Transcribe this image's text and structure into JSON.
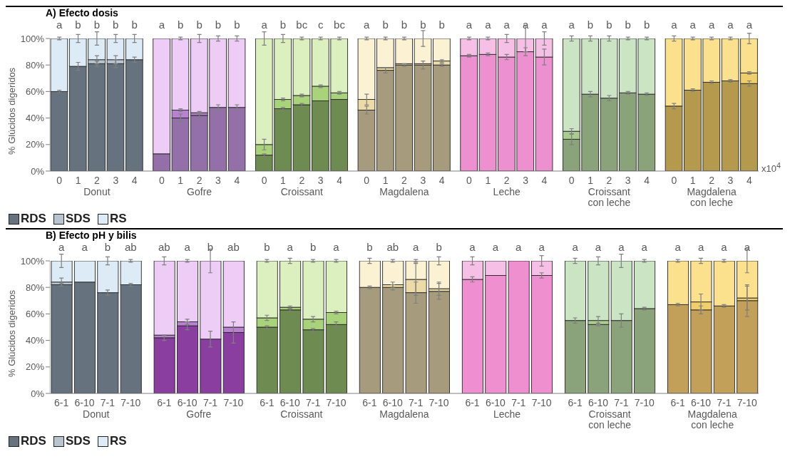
{
  "chart_data": [
    {
      "type": "bar",
      "stacked": true,
      "title": "A) Efecto dosis",
      "xlabel": "x10$^{4}$",
      "ylabel": "% Glúcidos digeridos",
      "legend": "bottom left",
      "categories": [
        "0",
        "1",
        "2",
        "3",
        "4",
        "0",
        "1",
        "2",
        "3",
        "4",
        "0",
        "1",
        "2",
        "3",
        "4",
        "0",
        "1",
        "2",
        "3",
        "4",
        "0",
        "1",
        "2",
        "3",
        "4",
        "0",
        "1",
        "2",
        "3",
        "4",
        "0",
        "1",
        "2",
        "3",
        "4"
      ],
      "ylim": [
        0,
        100
      ],
      "yticks": [
        {
          "value": 0,
          "label": "0%"
        },
        {
          "value": 20,
          "label": "20%"
        },
        {
          "value": 40,
          "label": "40%"
        },
        {
          "value": 60,
          "label": "60%"
        },
        {
          "value": 80,
          "label": "80%"
        },
        {
          "value": 100,
          "label": "100%"
        }
      ],
      "series": [
        {
          "name": "RDS",
          "values": [
            60,
            79,
            81,
            81,
            84,
            13,
            40,
            42,
            48,
            48,
            12,
            47,
            50,
            53,
            54,
            46,
            76,
            80,
            80,
            80,
            87,
            88,
            86,
            90,
            86,
            24,
            58,
            55,
            59,
            58,
            49,
            61,
            67,
            68,
            66
          ],
          "errors": [
            1,
            3,
            2,
            3,
            2,
            null,
            3,
            2,
            2,
            2,
            1,
            1,
            1,
            null,
            null,
            3,
            2,
            1,
            3,
            1,
            1,
            1,
            2,
            3,
            6,
            4,
            2,
            2,
            1,
            1,
            2,
            1,
            1,
            1,
            2
          ],
          "colors": [
            "#66737f",
            "#66737f",
            "#66737f",
            "#66737f",
            "#66737f",
            "#9370a8",
            "#9370a8",
            "#9370a8",
            "#9370a8",
            "#9370a8",
            "#6e8c52",
            "#6e8c52",
            "#6e8c52",
            "#6e8c52",
            "#6e8c52",
            "#a69c7d",
            "#a69c7d",
            "#a69c7d",
            "#a69c7d",
            "#a69c7d",
            "#ec90cf",
            "#ec90cf",
            "#ec90cf",
            "#ec90cf",
            "#ec90cf",
            "#8aa37a",
            "#8aa37a",
            "#8aa37a",
            "#8aa37a",
            "#8aa37a",
            "#b59a4e",
            "#b59a4e",
            "#b59a4e",
            "#b59a4e",
            "#b59a4e"
          ]
        },
        {
          "name": "SDS",
          "values": [
            0,
            0,
            3,
            3,
            0,
            0,
            6,
            2,
            0,
            0,
            8,
            7,
            7,
            11,
            5,
            8,
            2,
            1,
            1,
            3,
            0,
            0,
            0,
            0,
            0,
            6,
            0,
            0,
            0,
            0,
            0,
            0,
            0,
            0,
            8
          ],
          "errors": [
            null,
            null,
            3,
            3,
            null,
            null,
            1,
            1,
            null,
            null,
            4,
            1,
            1,
            1,
            1,
            4,
            null,
            null,
            null,
            1,
            null,
            null,
            null,
            null,
            null,
            2,
            null,
            null,
            null,
            null,
            null,
            null,
            null,
            null,
            1
          ],
          "colors": [
            null,
            null,
            "#b8c4d0",
            "#b8c4d0",
            null,
            null,
            "#b982d0",
            "#b982d0",
            null,
            null,
            "#a9d37a",
            "#a9d37a",
            "#a9d37a",
            "#a9d37a",
            "#a9d37a",
            "#ecdba6",
            "#ecdba6",
            "#ecdba6",
            "#ecdba6",
            "#ecdba6",
            null,
            null,
            null,
            null,
            null,
            "#a9cc8f",
            null,
            null,
            null,
            null,
            null,
            null,
            null,
            null,
            "#f0cf6a"
          ]
        },
        {
          "name": "RS",
          "values": [
            40,
            21,
            16,
            16,
            16,
            87,
            54,
            56,
            52,
            52,
            80,
            46,
            43,
            36,
            41,
            46,
            22,
            19,
            19,
            17,
            13,
            12,
            14,
            10,
            14,
            70,
            42,
            45,
            41,
            42,
            51,
            39,
            33,
            32,
            26
          ],
          "errors": [
            1,
            3,
            5,
            3,
            3,
            null,
            1,
            3,
            2,
            2,
            5,
            3,
            1,
            1,
            1,
            1,
            1,
            1,
            6,
            null,
            1,
            1,
            3,
            10,
            5,
            2,
            2,
            2,
            1,
            1,
            2,
            1,
            1,
            1,
            4
          ],
          "colors": [
            "#dcebf6",
            "#dcebf6",
            "#dcebf6",
            "#dcebf6",
            "#dcebf6",
            "#edcdf5",
            "#edcdf5",
            "#edcdf5",
            "#edcdf5",
            "#edcdf5",
            "#dcf0bf",
            "#dcf0bf",
            "#dcf0bf",
            "#dcf0bf",
            "#dcf0bf",
            "#fbf1d3",
            "#fbf1d3",
            "#fbf1d3",
            "#fbf1d3",
            "#fbf1d3",
            "#f6bfe6",
            "#f6bfe6",
            "#f6bfe6",
            "#f6bfe6",
            "#f6bfe6",
            "#cbe5c4",
            "#cbe5c4",
            "#cbe5c4",
            "#cbe5c4",
            "#cbe5c4",
            "#fbe08e",
            "#fbe08e",
            "#fbe08e",
            "#fbe08e",
            "#fbe08e"
          ]
        }
      ],
      "annotations": [
        "a",
        "b",
        "b",
        "b",
        "b",
        "a",
        "b",
        "b",
        "b",
        "b",
        "a",
        "b",
        "bc",
        "c",
        "bc",
        "a",
        "b",
        "b",
        "b",
        "b",
        "a",
        "a",
        "a",
        "a",
        "a",
        "a",
        "b",
        "b",
        "b",
        "b",
        "a",
        "a",
        "a",
        "a",
        "a",
        "Donut",
        "Gofre",
        "Croissant",
        "Magdalena",
        "Leche",
        "Croissant con leche",
        "Magdalena con leche"
      ]
    },
    {
      "type": "bar",
      "stacked": true,
      "title": "B) Efecto pH y bilis",
      "ylabel": "% Glúcidos digeridos",
      "legend": "bottom left",
      "categories": [
        "6-1",
        "6-10",
        "7-1",
        "7-10",
        "6-1",
        "6-10",
        "7-1",
        "7-10",
        "6-1",
        "6-10",
        "7-1",
        "7-10",
        "6-1",
        "6-10",
        "7-1",
        "7-10",
        "6-1",
        "6-10",
        "7-1",
        "7-10",
        "6-1",
        "6-10",
        "7-1",
        "7-10",
        "6-1",
        "6-10",
        "7-1",
        "7-10"
      ],
      "ylim": [
        0,
        100
      ],
      "yticks": [
        {
          "value": 0,
          "label": "0%"
        },
        {
          "value": 20,
          "label": "20%"
        },
        {
          "value": 40,
          "label": "40%"
        },
        {
          "value": 60,
          "label": "60%"
        },
        {
          "value": 80,
          "label": "80%"
        },
        {
          "value": 100,
          "label": "100%"
        }
      ],
      "series": [
        {
          "name": "RDS",
          "values": [
            82,
            84,
            76,
            82,
            42,
            51,
            41,
            46,
            50,
            63,
            48,
            52,
            80,
            80,
            76,
            77,
            86,
            89,
            100,
            89,
            55,
            52,
            55,
            64,
            67,
            63,
            66,
            70
          ],
          "errors": [
            1,
            null,
            2,
            1,
            2,
            3,
            6,
            8,
            1,
            1,
            1,
            2,
            1,
            2,
            8,
            6,
            2,
            null,
            null,
            2,
            2,
            1,
            5,
            1,
            1,
            3,
            1,
            12
          ],
          "colors": [
            "#66737f",
            "#66737f",
            "#66737f",
            "#66737f",
            "#8a3fa0",
            "#8a3fa0",
            "#8a3fa0",
            "#8a3fa0",
            "#6e8c52",
            "#6e8c52",
            "#6e8c52",
            "#6e8c52",
            "#a69c7d",
            "#a69c7d",
            "#a69c7d",
            "#a69c7d",
            "#f08fd0",
            "#f08fd0",
            "#f08fd0",
            "#f08fd0",
            "#8aa37a",
            "#8aa37a",
            "#8aa37a",
            "#8aa37a",
            "#c3a05a",
            "#c3a05a",
            "#c3a05a",
            "#c3a05a"
          ]
        },
        {
          "name": "SDS",
          "values": [
            2,
            0,
            0,
            0,
            2,
            3,
            0,
            4,
            7,
            2,
            8,
            9,
            0,
            2,
            10,
            2,
            0,
            0,
            0,
            0,
            0,
            3,
            0,
            0,
            0,
            6,
            0,
            2
          ],
          "errors": [
            3,
            null,
            null,
            null,
            null,
            2,
            null,
            null,
            2,
            1,
            2,
            1,
            null,
            2,
            12,
            5,
            null,
            null,
            null,
            null,
            null,
            3,
            null,
            null,
            null,
            6,
            null,
            9
          ],
          "colors": [
            "#b8c4d0",
            null,
            null,
            null,
            "#b982d0",
            "#b982d0",
            null,
            "#b982d0",
            "#a9d37a",
            "#a9d37a",
            "#a9d37a",
            "#a9d37a",
            null,
            "#ecdba6",
            "#ecdba6",
            "#ecdba6",
            null,
            null,
            null,
            null,
            null,
            "#a9cc8f",
            null,
            null,
            null,
            "#f0cf6a",
            null,
            "#f0cf6a"
          ]
        },
        {
          "name": "RS",
          "values": [
            16,
            16,
            24,
            18,
            56,
            46,
            59,
            50,
            43,
            35,
            44,
            39,
            20,
            18,
            14,
            21,
            14,
            11,
            0,
            11,
            45,
            45,
            45,
            36,
            33,
            31,
            34,
            28
          ],
          "errors": [
            5,
            null,
            3,
            1,
            3,
            1,
            9,
            null,
            1,
            2,
            1,
            1,
            2,
            1,
            1,
            3,
            3,
            null,
            null,
            4,
            2,
            3,
            5,
            1,
            1,
            2,
            1,
            9
          ],
          "colors": [
            "#dcebf6",
            "#dcebf6",
            "#dcebf6",
            "#dcebf6",
            "#edcdf5",
            "#edcdf5",
            "#edcdf5",
            "#edcdf5",
            "#dcf0bf",
            "#dcf0bf",
            "#dcf0bf",
            "#dcf0bf",
            "#fbf1d3",
            "#fbf1d3",
            "#fbf1d3",
            "#fbf1d3",
            "#f6bfe6",
            "#f6bfe6",
            null,
            "#f6bfe6",
            "#cbe5c4",
            "#cbe5c4",
            "#cbe5c4",
            "#cbe5c4",
            "#fbe08e",
            "#fbe08e",
            "#fbe08e",
            "#fbe08e"
          ]
        }
      ],
      "annotations": [
        "a",
        "a",
        "b",
        "ab",
        "ab",
        "a",
        "b",
        "ab",
        "b",
        "a",
        "b",
        "a",
        "b",
        "ab",
        "a",
        "b",
        "a",
        "a",
        "a",
        "a",
        "a",
        "a",
        "a",
        "a",
        "a",
        "a",
        "a",
        "a",
        "Donut",
        "Gofre",
        "Croissant",
        "Magdalena",
        "Leche",
        "Croissant con leche",
        "Magdalena con leche"
      ]
    }
  ]
}
